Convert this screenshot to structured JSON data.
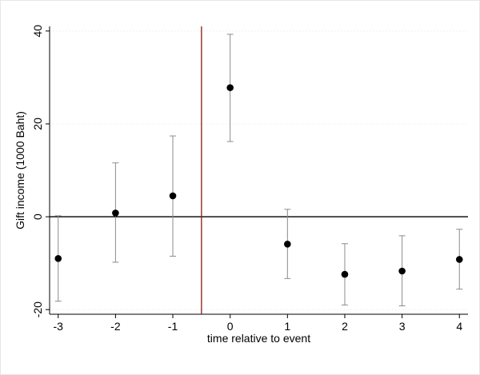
{
  "chart_data": {
    "type": "scatter",
    "title": "",
    "xlabel": "time relative to event",
    "ylabel": "Gift income (1000 Baht)",
    "xlim": [
      -3.15,
      4.15
    ],
    "ylim": [
      -21,
      41
    ],
    "xticks": [
      -3,
      -2,
      -1,
      0,
      1,
      2,
      3,
      4
    ],
    "yticks": [
      -20,
      0,
      20,
      40
    ],
    "grid": "dotted-horizontal",
    "reference_lines": {
      "vertical_x": -0.5,
      "vertical_color": "#8b1a1a",
      "horizontal_y": 0
    },
    "series": [
      {
        "x": [
          -3,
          -2,
          -1,
          0,
          1,
          2,
          3,
          4
        ],
        "y": [
          -9.0,
          0.8,
          4.5,
          27.8,
          -5.9,
          -12.4,
          -11.7,
          -9.2
        ],
        "ci_low": [
          -18.2,
          -9.8,
          -8.5,
          16.2,
          -13.3,
          -19.0,
          -19.2,
          -15.6
        ],
        "ci_high": [
          0.2,
          11.6,
          17.4,
          39.3,
          1.6,
          -5.8,
          -4.1,
          -2.7
        ]
      }
    ],
    "colors": {
      "marker": "#000000",
      "error_bar": "#8c8c8c",
      "zero_line": "#000000",
      "event_line": "#8b1a1a",
      "grid": "#e6e6e6"
    }
  }
}
